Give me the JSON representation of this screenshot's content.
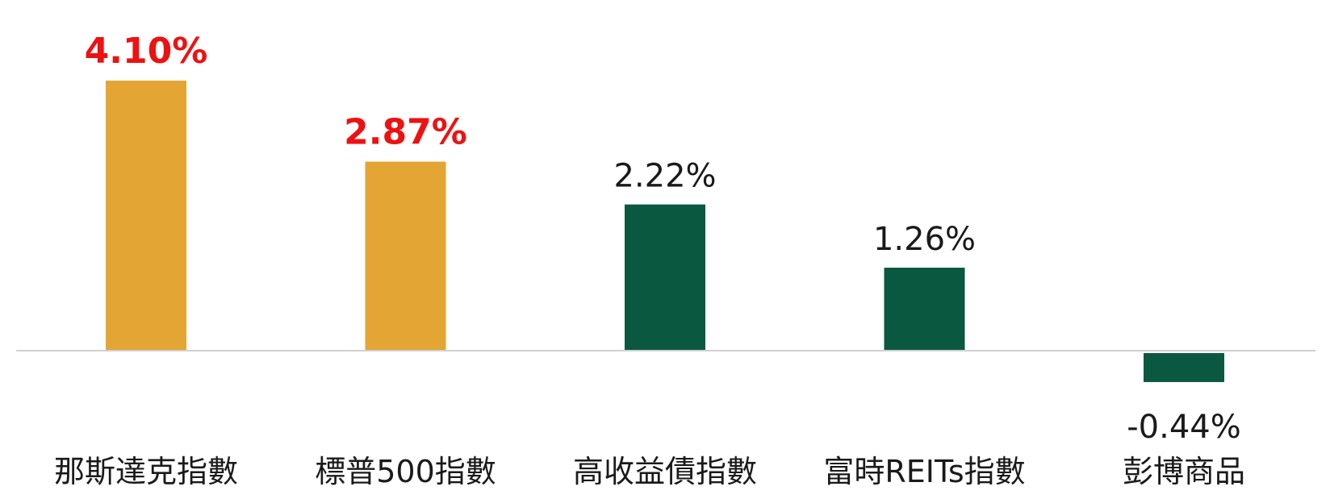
{
  "chart_data": {
    "type": "bar",
    "categories": [
      "那斯達克指數",
      "標普500指數",
      "高收益債指數",
      "富時REITs指數",
      "彭博商品"
    ],
    "values": [
      4.1,
      2.87,
      2.22,
      1.26,
      -0.44
    ],
    "value_labels": [
      "4.10%",
      "2.87%",
      "2.22%",
      "1.26%",
      "-0.44%"
    ],
    "highlighted": [
      true,
      true,
      false,
      false,
      false
    ],
    "title": "",
    "xlabel": "",
    "ylabel": "",
    "unit": "%",
    "ylim": [
      -0.44,
      4.1
    ],
    "grid": false,
    "legend": "none"
  },
  "colors": {
    "highlight_bar": "#E3A533",
    "normal_bar": "#0A5840",
    "highlight_label": "#EE1111",
    "normal_label": "#1a1a1a",
    "baseline": "#D0D0D0"
  }
}
